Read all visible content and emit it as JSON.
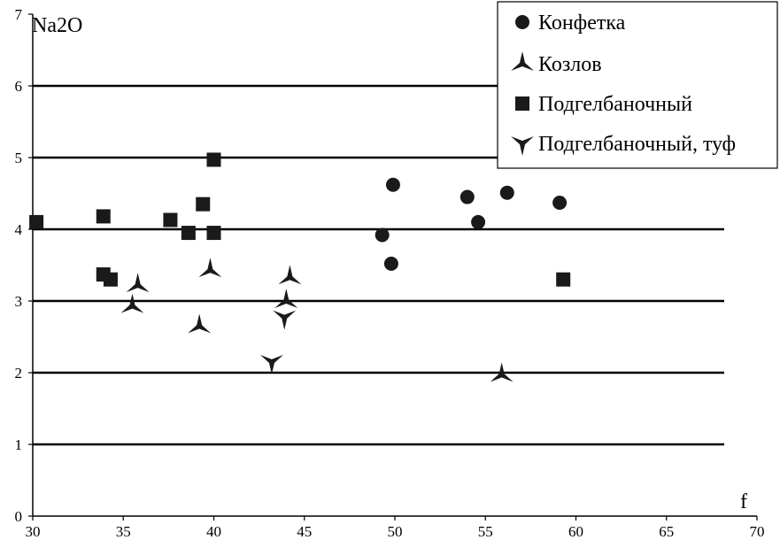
{
  "chart_data": {
    "type": "scatter",
    "ylabel": "Na2O",
    "xlabel": "f",
    "xlim": [
      30,
      70
    ],
    "ylim": [
      0,
      7
    ],
    "xticks": [
      30,
      35,
      40,
      45,
      50,
      55,
      60,
      65,
      70
    ],
    "yticks": [
      0,
      1,
      2,
      3,
      4,
      5,
      6,
      7
    ],
    "grid": "horizontal",
    "legend_position": "top-right",
    "series": [
      {
        "name": "Конфетка",
        "marker": "circle",
        "points": [
          [
            49.3,
            3.92
          ],
          [
            49.8,
            3.52
          ],
          [
            49.9,
            4.62
          ],
          [
            54.0,
            4.45
          ],
          [
            54.6,
            4.1
          ],
          [
            56.2,
            4.51
          ],
          [
            59.1,
            4.37
          ]
        ]
      },
      {
        "name": "Козлов",
        "marker": "tri-up",
        "points": [
          [
            35.5,
            2.93
          ],
          [
            35.8,
            3.22
          ],
          [
            39.2,
            2.65
          ],
          [
            39.8,
            3.43
          ],
          [
            44.0,
            3.0
          ],
          [
            44.2,
            3.33
          ],
          [
            55.9,
            1.97
          ]
        ]
      },
      {
        "name": "Подгелбаночный",
        "marker": "square",
        "points": [
          [
            30.2,
            4.1
          ],
          [
            33.9,
            4.18
          ],
          [
            33.9,
            3.37
          ],
          [
            34.3,
            3.3
          ],
          [
            37.6,
            4.13
          ],
          [
            38.6,
            3.95
          ],
          [
            39.4,
            4.35
          ],
          [
            40.0,
            4.97
          ],
          [
            40.0,
            3.95
          ],
          [
            59.3,
            3.3
          ]
        ]
      },
      {
        "name": "Подгелбаночный, туф",
        "marker": "tri-down",
        "points": [
          [
            43.2,
            2.15
          ],
          [
            43.9,
            2.77
          ]
        ]
      }
    ]
  }
}
